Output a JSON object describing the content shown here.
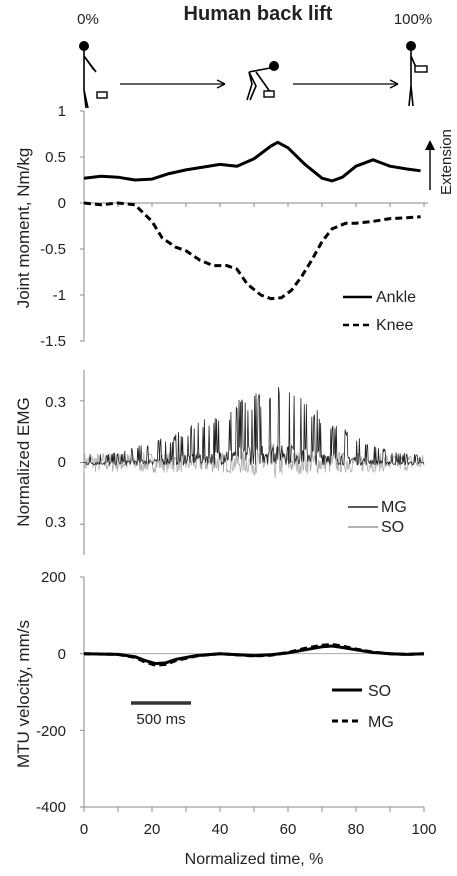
{
  "figure": {
    "title": "Human back lift",
    "start_label": "0%",
    "end_label": "100%",
    "extension_label": "Extension",
    "xlabel": "Normalized time, %",
    "x_ticks": [
      "0",
      "20",
      "40",
      "60",
      "80",
      "100"
    ]
  },
  "chart_data": [
    {
      "type": "line",
      "ylabel": "Joint moment, Nm/kg",
      "ylim": [
        -1.5,
        1
      ],
      "y_ticks": [
        "1",
        "0.5",
        "0",
        "-0.5",
        "-1",
        "-1.5"
      ],
      "series": [
        {
          "name": "Ankle",
          "style": "solid",
          "x": [
            0,
            5,
            10,
            15,
            20,
            25,
            30,
            35,
            40,
            45,
            50,
            55,
            57,
            60,
            65,
            70,
            73,
            76,
            80,
            85,
            90,
            95,
            99
          ],
          "values": [
            0.27,
            0.29,
            0.28,
            0.25,
            0.26,
            0.32,
            0.36,
            0.39,
            0.42,
            0.4,
            0.48,
            0.62,
            0.66,
            0.6,
            0.42,
            0.27,
            0.24,
            0.28,
            0.4,
            0.47,
            0.4,
            0.37,
            0.35
          ]
        },
        {
          "name": "Knee",
          "style": "dashed",
          "x": [
            0,
            5,
            10,
            15,
            20,
            23,
            27,
            30,
            34,
            38,
            42,
            45,
            48,
            52,
            55,
            58,
            61,
            64,
            67,
            70,
            73,
            77,
            80,
            85,
            90,
            95,
            99
          ],
          "values": [
            0.0,
            -0.02,
            0.0,
            -0.02,
            -0.2,
            -0.38,
            -0.48,
            -0.52,
            -0.62,
            -0.68,
            -0.68,
            -0.72,
            -0.88,
            -1.0,
            -1.04,
            -1.03,
            -0.95,
            -0.8,
            -0.62,
            -0.42,
            -0.28,
            -0.22,
            -0.22,
            -0.2,
            -0.17,
            -0.16,
            -0.15
          ]
        }
      ]
    },
    {
      "type": "line",
      "ylabel": "Normalized EMG",
      "ylim": [
        -0.45,
        0.45
      ],
      "y_ticks": [
        "0.3",
        "0",
        "0.3"
      ],
      "y_tick_values": [
        0.3,
        0,
        -0.3
      ],
      "series": [
        {
          "name": "MG",
          "color": "#222222",
          "x": [
            0,
            10,
            15,
            20,
            25,
            30,
            35,
            40,
            45,
            50,
            55,
            60,
            65,
            70,
            75,
            80,
            85,
            90,
            95,
            100
          ],
          "values": [
            0.06,
            0.06,
            0.09,
            0.12,
            0.14,
            0.18,
            0.22,
            0.26,
            0.32,
            0.36,
            0.4,
            0.38,
            0.32,
            0.26,
            0.2,
            0.14,
            0.1,
            0.07,
            0.06,
            0.05
          ]
        },
        {
          "name": "SO",
          "color": "#aaaaaa",
          "x": [
            0,
            20,
            40,
            50,
            55,
            60,
            80,
            100
          ],
          "values": [
            -0.05,
            -0.05,
            -0.05,
            -0.06,
            -0.1,
            -0.06,
            -0.05,
            -0.04
          ]
        }
      ]
    },
    {
      "type": "line",
      "ylabel": "MTU velocity, mm/s",
      "ylim": [
        -400,
        200
      ],
      "y_ticks": [
        "200",
        "0",
        "-200",
        "-400"
      ],
      "scale_bar_label": "500 ms",
      "series": [
        {
          "name": "SO",
          "style": "solid",
          "x": [
            0,
            10,
            15,
            18,
            21,
            24,
            27,
            30,
            33,
            40,
            50,
            55,
            60,
            65,
            70,
            73,
            76,
            80,
            85,
            90,
            95,
            100
          ],
          "values": [
            0,
            -2,
            -8,
            -18,
            -26,
            -24,
            -15,
            -10,
            -5,
            0,
            -5,
            -3,
            2,
            10,
            18,
            20,
            16,
            10,
            3,
            0,
            -2,
            0
          ]
        },
        {
          "name": "MG",
          "style": "dashed",
          "x": [
            0,
            10,
            15,
            18,
            21,
            24,
            27,
            30,
            33,
            40,
            50,
            55,
            60,
            65,
            70,
            73,
            76,
            80,
            85,
            90,
            95,
            100
          ],
          "values": [
            0,
            -2,
            -10,
            -22,
            -30,
            -28,
            -18,
            -12,
            -6,
            0,
            -6,
            -4,
            3,
            14,
            22,
            24,
            20,
            12,
            4,
            0,
            -2,
            0
          ]
        }
      ]
    }
  ]
}
